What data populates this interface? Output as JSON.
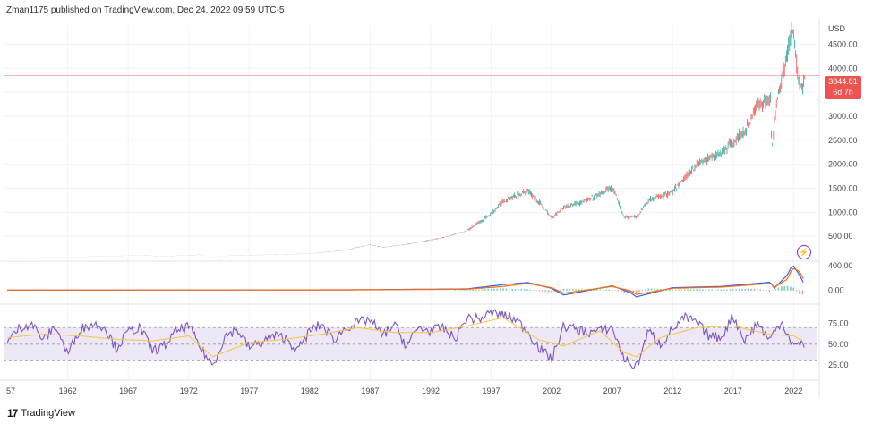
{
  "header": {
    "author": "Zman1175",
    "published_text": "published on TradingView.com,",
    "date": "Dec 24, 2022 09:59 UTC-5"
  },
  "branding": {
    "logo_text": "TradingView",
    "logo_mark": "17"
  },
  "price_tag": {
    "price": "3844.81",
    "countdown": "6d 7h"
  },
  "icons": {
    "alert": "lightning-icon"
  },
  "colors": {
    "up": "#26a69a",
    "down": "#ef5350",
    "macd": "#2962ff",
    "signal": "#ff6d00",
    "rsi": "#7e57c2",
    "rsi_ma": "#f5c542",
    "rsi_band": "#ede7f6"
  },
  "chart_data": [
    {
      "type": "line",
      "title": "",
      "currency_label": "USD",
      "x_ticks": [
        "57",
        "1962",
        "1967",
        "1972",
        "1977",
        "1982",
        "1987",
        "1992",
        "1997",
        "2002",
        "2007",
        "2012",
        "2017",
        "2022"
      ],
      "y_ticks": [
        "500.00",
        "1000.00",
        "1500.00",
        "2000.00",
        "2500.00",
        "3000.00",
        "3500.00",
        "4000.00",
        "4500.00"
      ],
      "ylim": [
        0,
        4900
      ],
      "last_price": 3844.81,
      "series": [
        {
          "x": [
            1957,
            1960,
            1962,
            1965,
            1968,
            1970,
            1973,
            1974,
            1976,
            1980,
            1982,
            1985,
            1987,
            1988,
            1990,
            1993,
            1995,
            1997,
            1998,
            2000,
            2001,
            2002,
            2003,
            2005,
            2007,
            2008,
            2009,
            2010,
            2012,
            2014,
            2016,
            2018,
            2019,
            2020.1,
            2020.2,
            2020.6,
            2021,
            2021.9,
            2022.4,
            2022.75,
            2022.97
          ],
          "y": [
            45,
            58,
            60,
            85,
            100,
            85,
            115,
            70,
            105,
            120,
            140,
            210,
            330,
            270,
            330,
            470,
            615,
            970,
            1230,
            1450,
            1200,
            880,
            1110,
            1250,
            1520,
            900,
            900,
            1250,
            1420,
            2000,
            2240,
            2700,
            3230,
            3380,
            2240,
            3360,
            3760,
            4790,
            3780,
            3580,
            3844
          ]
        }
      ]
    },
    {
      "type": "line",
      "title": "",
      "y_ticks": [
        "0.00",
        "400.00"
      ],
      "ylim": [
        -200,
        460
      ],
      "series": [
        {
          "x": [
            1957,
            1970,
            1985,
            1995,
            1998,
            2000,
            2002,
            2003,
            2007,
            2008.5,
            2009,
            2012,
            2016,
            2020.1,
            2020.4,
            2021.5,
            2021.9,
            2022.5,
            2022.97
          ],
          "y": [
            0,
            2,
            5,
            20,
            90,
            125,
            30,
            -80,
            70,
            -40,
            -110,
            40,
            60,
            130,
            30,
            250,
            420,
            250,
            60
          ]
        },
        {
          "x": [
            1957,
            1970,
            1985,
            1995,
            1998,
            2000,
            2002,
            2003,
            2007,
            2008.5,
            2009,
            2012,
            2016,
            2020.1,
            2020.4,
            2021.5,
            2021.9,
            2022.5,
            2022.97
          ],
          "y": [
            0,
            2,
            4,
            15,
            60,
            110,
            40,
            -50,
            60,
            -10,
            -70,
            30,
            50,
            110,
            50,
            180,
            360,
            310,
            120
          ]
        }
      ],
      "histogram": {
        "x": [
          1996,
          1997,
          1998,
          1999,
          2000,
          2001,
          2002,
          2003,
          2004,
          2006,
          2007,
          2008,
          2009,
          2010,
          2012,
          2014,
          2016,
          2018,
          2019,
          2020,
          2021,
          2021.5,
          2022,
          2022.5,
          2022.97
        ],
        "y": [
          10,
          25,
          30,
          20,
          15,
          -10,
          -30,
          25,
          15,
          10,
          10,
          -30,
          -40,
          30,
          10,
          15,
          10,
          20,
          25,
          -20,
          60,
          70,
          40,
          -60,
          -70
        ]
      }
    },
    {
      "type": "line",
      "title": "",
      "y_ticks": [
        "25.00",
        "50.00",
        "75.00"
      ],
      "ylim": [
        10,
        95
      ],
      "bands": [
        30,
        70
      ],
      "midline": 50,
      "series": [
        {
          "x": [
            1957,
            1958,
            1959,
            1960,
            1961,
            1962,
            1963,
            1964,
            1965,
            1966,
            1967,
            1968,
            1969,
            1970,
            1971,
            1972,
            1973,
            1974,
            1975,
            1976,
            1977,
            1978,
            1979,
            1980,
            1981,
            1982,
            1983,
            1984,
            1985,
            1986,
            1987,
            1988,
            1989,
            1990,
            1991,
            1992,
            1993,
            1994,
            1995,
            1996,
            1997,
            1998,
            1999,
            2000,
            2001,
            2002,
            2003,
            2004,
            2005,
            2006,
            2007,
            2008,
            2009,
            2010,
            2011,
            2012,
            2013,
            2014,
            2015,
            2016,
            2017,
            2018,
            2019,
            2020,
            2021,
            2022,
            2022.97
          ],
          "y": [
            52,
            70,
            75,
            55,
            72,
            38,
            68,
            74,
            72,
            45,
            65,
            70,
            42,
            48,
            66,
            72,
            45,
            24,
            60,
            68,
            46,
            52,
            60,
            58,
            42,
            66,
            74,
            55,
            70,
            76,
            80,
            60,
            74,
            48,
            70,
            66,
            70,
            56,
            82,
            80,
            88,
            85,
            80,
            66,
            45,
            32,
            72,
            68,
            64,
            66,
            70,
            32,
            22,
            66,
            50,
            68,
            82,
            76,
            60,
            58,
            84,
            54,
            76,
            55,
            78,
            48,
            50
          ]
        },
        {
          "x": [
            1957,
            1960,
            1963,
            1966,
            1969,
            1972,
            1974,
            1977,
            1980,
            1983,
            1986,
            1989,
            1992,
            1995,
            1998,
            2001,
            2003,
            2006,
            2008,
            2009,
            2011,
            2014,
            2017,
            2020,
            2022,
            2022.97
          ],
          "y": [
            58,
            62,
            60,
            56,
            54,
            60,
            35,
            52,
            56,
            62,
            70,
            64,
            64,
            72,
            82,
            55,
            48,
            66,
            40,
            35,
            58,
            70,
            72,
            62,
            60,
            52
          ]
        }
      ]
    }
  ]
}
